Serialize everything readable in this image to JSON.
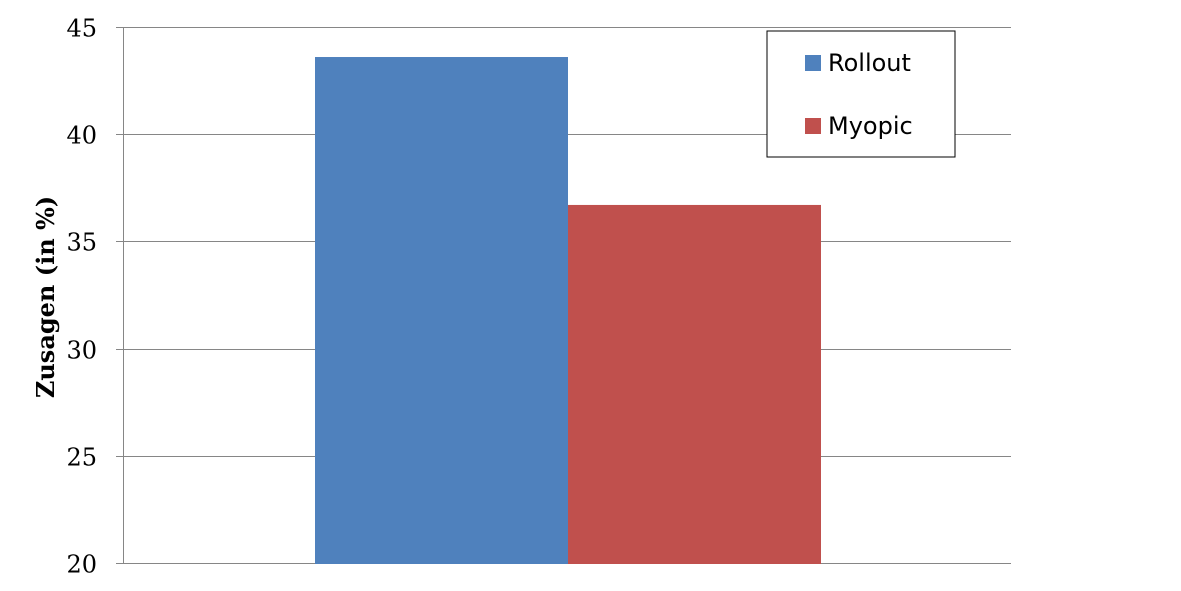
{
  "chart_data": {
    "type": "bar",
    "categories": [
      ""
    ],
    "series": [
      {
        "name": "Rollout",
        "values": [
          43.6
        ],
        "color": "#4F81BD"
      },
      {
        "name": "Myopic",
        "values": [
          36.7
        ],
        "color": "#C0504D"
      }
    ],
    "title": "",
    "xlabel": "",
    "ylabel": "Zusagen (in %)",
    "ylim": [
      20,
      45
    ],
    "yticks": [
      20,
      25,
      30,
      35,
      40,
      45
    ],
    "ytick_labels": [
      "20",
      "25",
      "30",
      "35",
      "40",
      "45"
    ],
    "grid": true,
    "legend_position": "top-right"
  }
}
